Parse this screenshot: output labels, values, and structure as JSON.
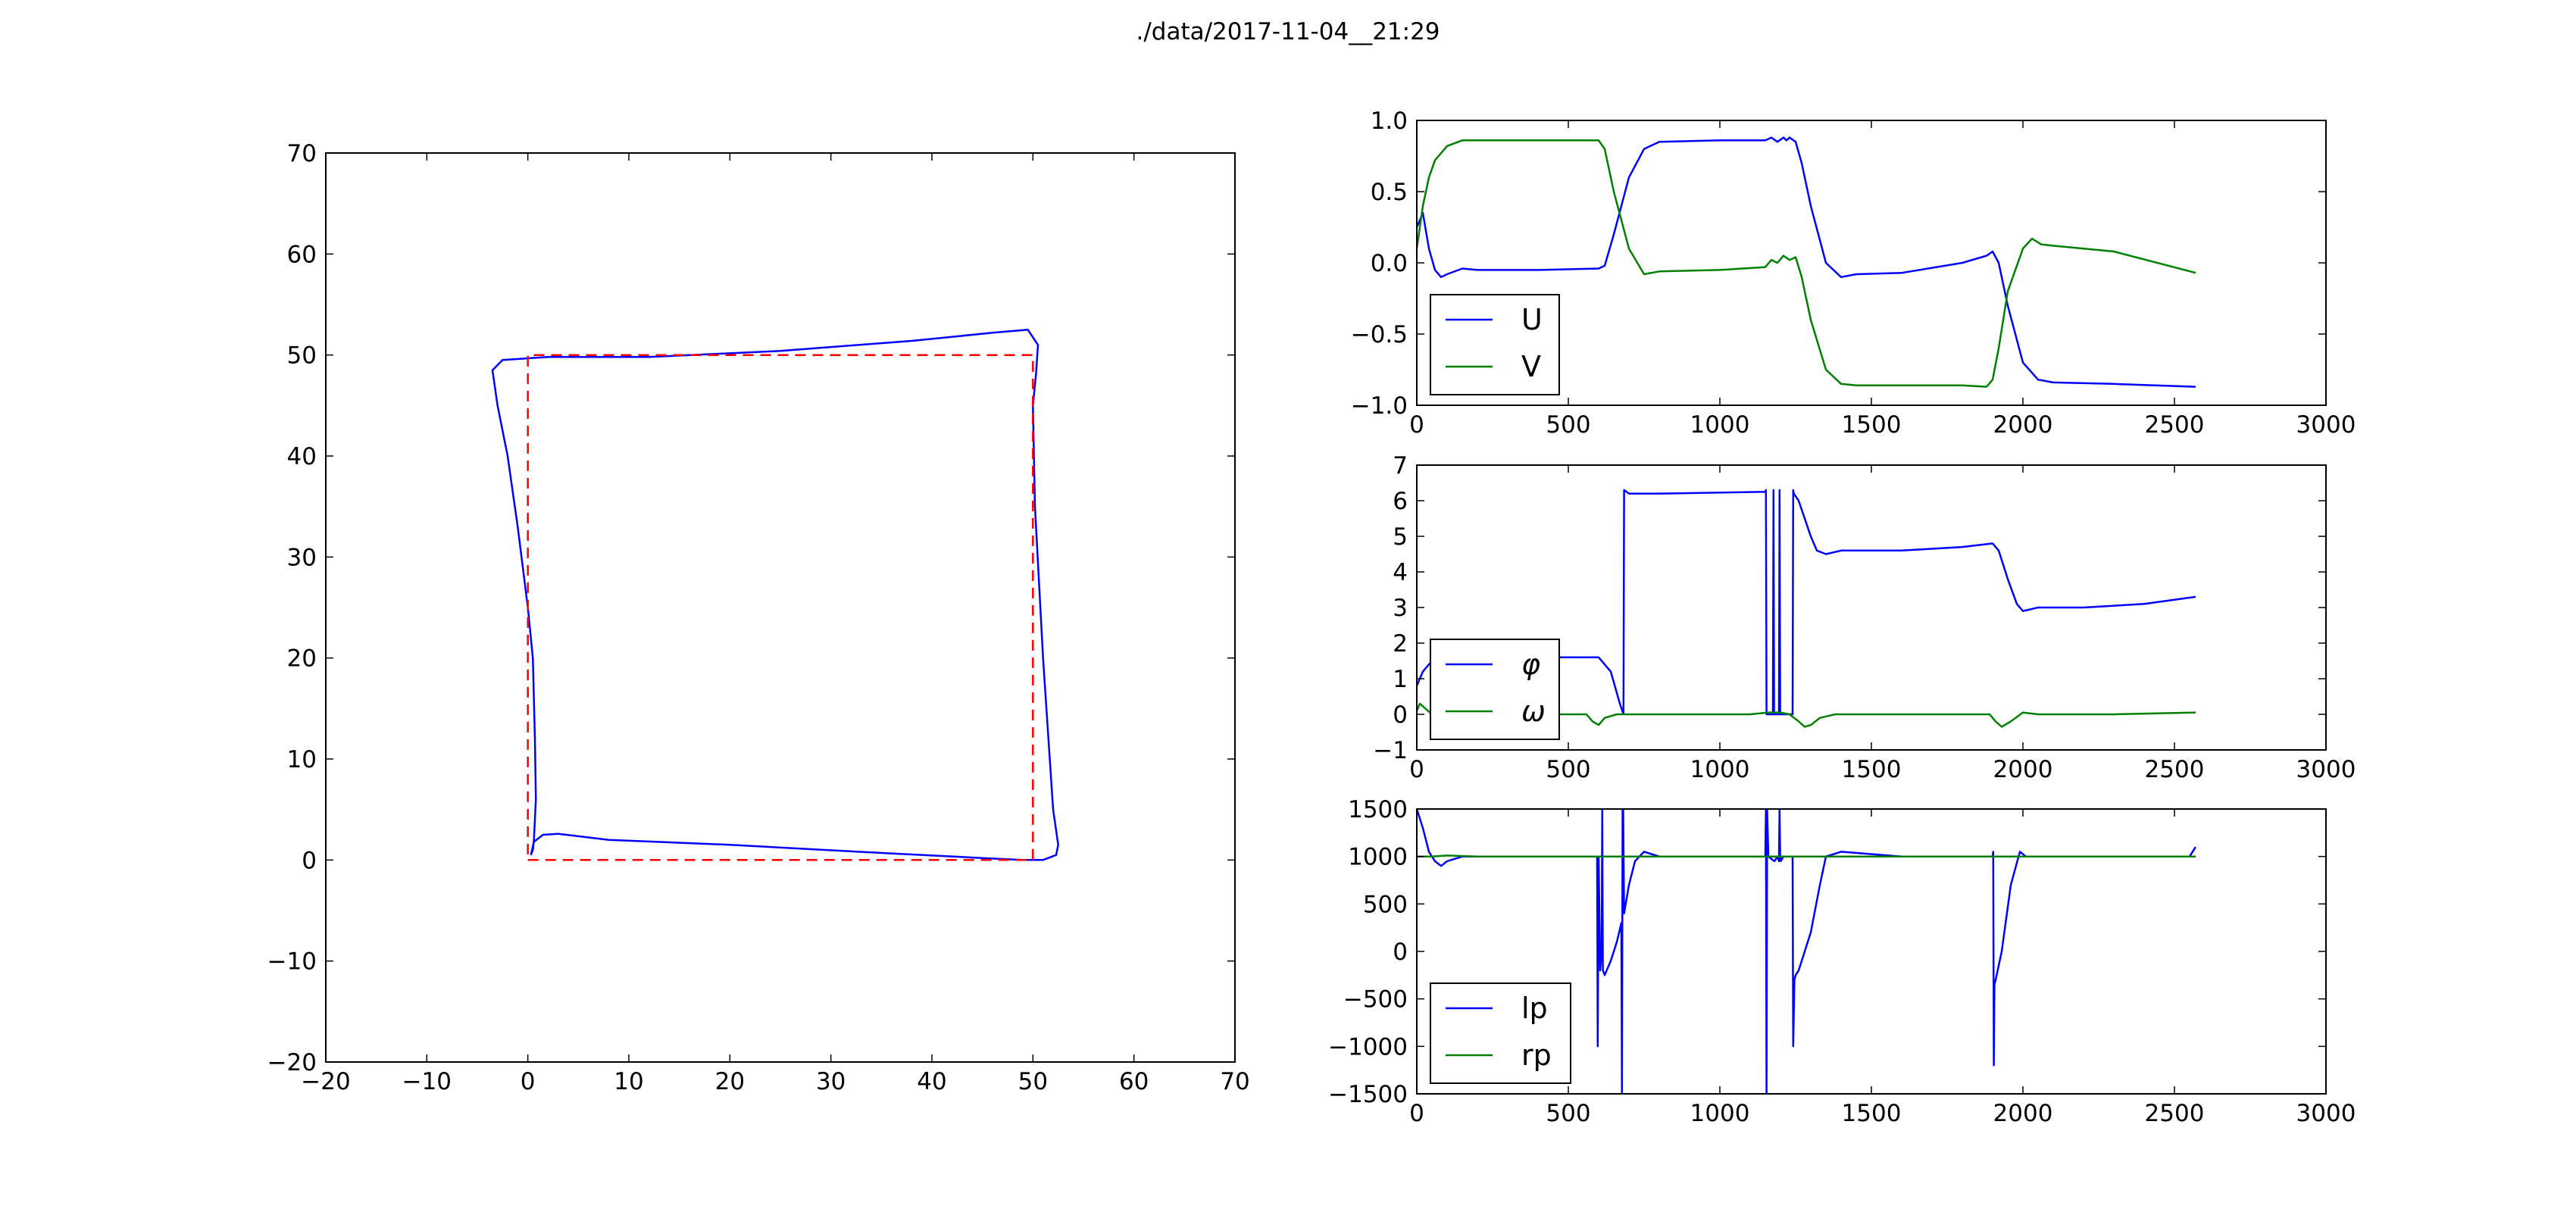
{
  "figure": {
    "title": "./data/2017-11-04__21:29"
  },
  "colors": {
    "blue": "#0000ff",
    "green": "#008000",
    "red": "#ff0000"
  },
  "chart_data": [
    {
      "type": "line",
      "name": "trajectory",
      "xlim": [
        -20,
        70
      ],
      "ylim": [
        -20,
        70
      ],
      "xticks": [
        -20,
        -10,
        0,
        10,
        20,
        30,
        40,
        50,
        60,
        70
      ],
      "yticks": [
        -20,
        -10,
        0,
        10,
        20,
        30,
        40,
        50,
        60,
        70
      ],
      "xtick_labels": [
        "−20",
        "−10",
        "0",
        "10",
        "20",
        "30",
        "40",
        "50",
        "60",
        "70"
      ],
      "ytick_labels": [
        "−20",
        "−10",
        "0",
        "10",
        "20",
        "30",
        "40",
        "50",
        "60",
        "70"
      ],
      "grid": false,
      "series": [
        {
          "color": "#0000ff",
          "style": "solid",
          "x": [
            0.3,
            0.6,
            1.5,
            3,
            8,
            20,
            35,
            45,
            49,
            51,
            52.3,
            52.5,
            52,
            51,
            50.2,
            50,
            50.3,
            50.5,
            49.5,
            46,
            38,
            25,
            12,
            2,
            -2.5,
            -3.5,
            -3,
            -2,
            -1,
            0,
            0.5,
            0.7,
            0.8,
            0.6,
            0.5,
            0.3
          ],
          "y": [
            0.5,
            1.8,
            2.5,
            2.6,
            2,
            1.5,
            0.7,
            0.2,
            0,
            0,
            0.5,
            1.5,
            5,
            20,
            35,
            45,
            48,
            51,
            52.5,
            52.2,
            51.4,
            50.4,
            49.8,
            49.8,
            49.5,
            48.5,
            45,
            40,
            33,
            25,
            20,
            12,
            6,
            2,
            1,
            0.5
          ]
        },
        {
          "color": "#ff0000",
          "style": "dashed",
          "x": [
            0,
            50,
            50,
            0,
            0
          ],
          "y": [
            0,
            0,
            50,
            50,
            0
          ]
        }
      ]
    },
    {
      "type": "line",
      "name": "UV",
      "xlim": [
        0,
        3000
      ],
      "ylim": [
        -1.0,
        1.0
      ],
      "xticks": [
        0,
        500,
        1000,
        1500,
        2000,
        2500,
        3000
      ],
      "yticks": [
        -1.0,
        -0.5,
        0.0,
        0.5,
        1.0
      ],
      "xtick_labels": [
        "0",
        "500",
        "1000",
        "1500",
        "2000",
        "2500",
        "3000"
      ],
      "ytick_labels": [
        "−1.0",
        "−0.5",
        "0.0",
        "0.5",
        "1.0"
      ],
      "grid": false,
      "legend": {
        "placement": "lower-left",
        "entries": [
          "U",
          "V"
        ]
      },
      "series": [
        {
          "name": "U",
          "color": "#0000ff",
          "x": [
            0,
            20,
            40,
            60,
            80,
            100,
            150,
            200,
            400,
            600,
            620,
            650,
            700,
            750,
            800,
            1000,
            1150,
            1170,
            1190,
            1210,
            1220,
            1230,
            1250,
            1270,
            1300,
            1350,
            1400,
            1450,
            1600,
            1800,
            1880,
            1900,
            1920,
            1950,
            2000,
            2050,
            2100,
            2300,
            2570
          ],
          "y": [
            0.25,
            0.35,
            0.1,
            -0.05,
            -0.1,
            -0.08,
            -0.04,
            -0.05,
            -0.05,
            -0.04,
            -0.02,
            0.2,
            0.6,
            0.8,
            0.85,
            0.86,
            0.86,
            0.88,
            0.85,
            0.88,
            0.86,
            0.88,
            0.85,
            0.7,
            0.4,
            0.0,
            -0.1,
            -0.08,
            -0.07,
            0.0,
            0.05,
            0.08,
            0.0,
            -0.3,
            -0.7,
            -0.82,
            -0.84,
            -0.85,
            -0.87
          ]
        },
        {
          "name": "V",
          "color": "#008000",
          "x": [
            0,
            20,
            40,
            60,
            100,
            150,
            200,
            400,
            600,
            620,
            650,
            700,
            750,
            800,
            1000,
            1150,
            1170,
            1190,
            1210,
            1230,
            1250,
            1270,
            1300,
            1350,
            1400,
            1450,
            1600,
            1800,
            1880,
            1900,
            1920,
            1950,
            2000,
            2030,
            2060,
            2100,
            2300,
            2570
          ],
          "y": [
            0.1,
            0.4,
            0.6,
            0.72,
            0.82,
            0.86,
            0.86,
            0.86,
            0.86,
            0.8,
            0.5,
            0.1,
            -0.08,
            -0.06,
            -0.05,
            -0.03,
            0.02,
            0.0,
            0.05,
            0.02,
            0.04,
            -0.1,
            -0.4,
            -0.75,
            -0.85,
            -0.86,
            -0.86,
            -0.86,
            -0.87,
            -0.82,
            -0.6,
            -0.2,
            0.1,
            0.17,
            0.13,
            0.12,
            0.08,
            -0.07
          ]
        }
      ]
    },
    {
      "type": "line",
      "name": "phi_omega",
      "xlim": [
        0,
        3000
      ],
      "ylim": [
        -1,
        7
      ],
      "xticks": [
        0,
        500,
        1000,
        1500,
        2000,
        2500,
        3000
      ],
      "yticks": [
        -1,
        0,
        1,
        2,
        3,
        4,
        5,
        6,
        7
      ],
      "xtick_labels": [
        "0",
        "500",
        "1000",
        "1500",
        "2000",
        "2500",
        "3000"
      ],
      "ytick_labels": [
        "−1",
        "0",
        "1",
        "2",
        "3",
        "4",
        "5",
        "6",
        "7"
      ],
      "grid": false,
      "legend": {
        "placement": "lower-left",
        "entries": [
          "φ",
          "ω"
        ]
      },
      "series": [
        {
          "name": "φ",
          "color": "#0000ff",
          "x": [
            0,
            20,
            50,
            100,
            200,
            400,
            600,
            640,
            670,
            682,
            684,
            700,
            750,
            800,
            1150,
            1152,
            1154,
            1175,
            1177,
            1179,
            1195,
            1197,
            1199,
            1220,
            1240,
            1242,
            1244,
            1260,
            1300,
            1320,
            1350,
            1400,
            1600,
            1800,
            1900,
            1920,
            1950,
            1980,
            2000,
            2050,
            2200,
            2400,
            2570
          ],
          "y": [
            0.8,
            1.2,
            1.5,
            1.6,
            1.6,
            1.6,
            1.6,
            1.2,
            0.3,
            0.0,
            6.3,
            6.2,
            6.2,
            6.2,
            6.25,
            6.3,
            0.0,
            0.0,
            6.3,
            0.0,
            0.0,
            6.3,
            0.0,
            0.0,
            0.0,
            6.3,
            6.2,
            6.0,
            5.0,
            4.6,
            4.5,
            4.6,
            4.6,
            4.7,
            4.8,
            4.6,
            3.8,
            3.1,
            2.9,
            3.0,
            3.0,
            3.1,
            3.3
          ]
        },
        {
          "name": "ω",
          "color": "#008000",
          "x": [
            0,
            10,
            30,
            50,
            70,
            100,
            200,
            400,
            560,
            580,
            600,
            620,
            660,
            700,
            800,
            1100,
            1160,
            1200,
            1230,
            1260,
            1280,
            1300,
            1330,
            1380,
            1500,
            1800,
            1890,
            1910,
            1930,
            1960,
            2000,
            2050,
            2300,
            2570
          ],
          "y": [
            0.1,
            0.3,
            0.15,
            0.0,
            -0.05,
            0.0,
            0.0,
            0.0,
            0.0,
            -0.2,
            -0.3,
            -0.1,
            0.0,
            0.0,
            0.0,
            0.0,
            0.05,
            0.05,
            0.0,
            -0.2,
            -0.35,
            -0.3,
            -0.1,
            0.0,
            0.0,
            0.0,
            0.0,
            -0.2,
            -0.35,
            -0.2,
            0.05,
            0.0,
            0.0,
            0.05
          ]
        }
      ]
    },
    {
      "type": "line",
      "name": "lp_rp",
      "xlim": [
        0,
        3000
      ],
      "ylim": [
        -1500,
        1500
      ],
      "xticks": [
        0,
        500,
        1000,
        1500,
        2000,
        2500,
        3000
      ],
      "yticks": [
        -1500,
        -1000,
        -500,
        0,
        500,
        1000,
        1500
      ],
      "xtick_labels": [
        "0",
        "500",
        "1000",
        "1500",
        "2000",
        "2500",
        "3000"
      ],
      "ytick_labels": [
        "−1500",
        "−1000",
        "−500",
        "0",
        "500",
        "1000",
        "1500"
      ],
      "grid": false,
      "legend": {
        "placement": "lower-left",
        "entries": [
          "lp",
          "rp"
        ]
      },
      "series": [
        {
          "name": "lp",
          "color": "#0000ff",
          "x": [
            0,
            20,
            40,
            60,
            80,
            100,
            150,
            200,
            590,
            595,
            597,
            600,
            605,
            610,
            612,
            614,
            620,
            640,
            660,
            675,
            677,
            679,
            681,
            684,
            700,
            720,
            750,
            800,
            1150,
            1152,
            1154,
            1156,
            1160,
            1180,
            1190,
            1195,
            1197,
            1199,
            1201,
            1210,
            1240,
            1242,
            1246,
            1250,
            1260,
            1300,
            1330,
            1350,
            1400,
            1600,
            1900,
            1902,
            1904,
            1906,
            1910,
            1930,
            1960,
            1990,
            2010,
            2050,
            2300,
            2550,
            2570
          ],
          "y": [
            1500,
            1300,
            1050,
            950,
            900,
            950,
            1000,
            1000,
            1000,
            1000,
            -1000,
            1000,
            -200,
            0,
            1500,
            -200,
            -250,
            -100,
            100,
            300,
            -1500,
            1500,
            1500,
            400,
            700,
            950,
            1050,
            1000,
            1000,
            1500,
            -1500,
            1500,
            1000,
            950,
            1000,
            950,
            1500,
            1000,
            950,
            1000,
            1000,
            -1000,
            -300,
            -250,
            -200,
            200,
            700,
            1000,
            1050,
            1000,
            1000,
            1050,
            -1200,
            -350,
            -300,
            0,
            700,
            1050,
            1000,
            1000,
            1000,
            1000,
            1100
          ]
        },
        {
          "name": "rp",
          "color": "#008000",
          "x": [
            0,
            50,
            100,
            200,
            600,
            1000,
            1500,
            2000,
            2570
          ],
          "y": [
            1000,
            1000,
            1010,
            1000,
            1000,
            1000,
            1000,
            1000,
            1000
          ]
        }
      ]
    }
  ]
}
